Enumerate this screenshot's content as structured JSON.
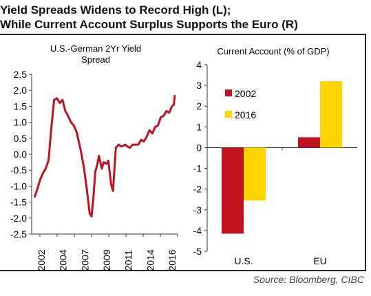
{
  "title_line1": "Yield Spreads Widens to Record High (L);",
  "title_line2": "While Current Account Surplus Supports the Euro (R)",
  "source": "Source: Bloomberg, CIBC",
  "chart_data": [
    {
      "type": "line",
      "title_line1": "U.S.-German 2Yr Yield",
      "title_line2": "Spread",
      "ylim": [
        -2.5,
        2.5
      ],
      "yticks": [
        "2.5",
        "2.0",
        "1.5",
        "1.0",
        "0.5",
        "0.0",
        "-0.5",
        "-1.0",
        "-1.5",
        "-2.0",
        "-2.5"
      ],
      "xticks": [
        "2002",
        "2004",
        "2007",
        "2009",
        "2011",
        "2014",
        "2016"
      ],
      "color": "#c0111f",
      "grid": false,
      "series": [
        {
          "x": [
            2001.9,
            2002.2,
            2002.5,
            2002.8,
            2003.1,
            2003.4,
            2003.7,
            2004.0,
            2004.3,
            2004.6,
            2004.9,
            2005.2,
            2005.5,
            2005.8,
            2006.1,
            2006.4,
            2006.6,
            2006.9,
            2007.2,
            2007.5,
            2007.8,
            2008.0,
            2008.2,
            2008.4,
            2008.6,
            2008.8,
            2009.1,
            2009.3,
            2009.6,
            2009.8,
            2010.1,
            2010.3,
            2010.6,
            2010.9,
            2011.1,
            2011.3,
            2011.6,
            2011.8,
            2012.1,
            2012.4,
            2012.7,
            2013.0,
            2013.3,
            2013.6,
            2013.9,
            2014.2,
            2014.5,
            2014.8,
            2015.1,
            2015.4,
            2015.7,
            2016.0,
            2016.3,
            2016.6,
            2016.8,
            2016.9
          ],
          "y": [
            -1.35,
            -1.1,
            -0.8,
            -0.6,
            -0.45,
            -0.2,
            0.8,
            1.7,
            1.75,
            1.6,
            1.7,
            1.35,
            1.2,
            1.0,
            0.9,
            0.7,
            0.45,
            0.05,
            -0.45,
            -1.1,
            -1.85,
            -1.95,
            -1.35,
            -0.55,
            -0.35,
            -0.05,
            -0.45,
            -0.25,
            -0.3,
            -0.2,
            -0.95,
            -1.15,
            0.2,
            0.3,
            0.25,
            0.25,
            0.3,
            0.25,
            0.2,
            0.3,
            0.3,
            0.3,
            0.45,
            0.4,
            0.55,
            0.75,
            0.65,
            0.85,
            0.9,
            1.15,
            1.2,
            1.35,
            1.3,
            1.5,
            1.55,
            1.85
          ]
        }
      ],
      "x_range": [
        2001.6,
        2017.2
      ]
    },
    {
      "type": "bar",
      "title": "Current Account (% of GDP)",
      "categories": [
        "U.S.",
        "EU"
      ],
      "ylim": [
        -5,
        4
      ],
      "yticks": [
        "4",
        "3",
        "2",
        "1",
        "0",
        "-1",
        "-2",
        "-3",
        "-4",
        "-5"
      ],
      "legend_position": "upper-left",
      "series": [
        {
          "name": "2002",
          "color": "#c0111f",
          "values": [
            -4.15,
            0.5
          ]
        },
        {
          "name": "2016",
          "color": "#ffd400",
          "values": [
            -2.55,
            3.2
          ]
        }
      ]
    }
  ]
}
